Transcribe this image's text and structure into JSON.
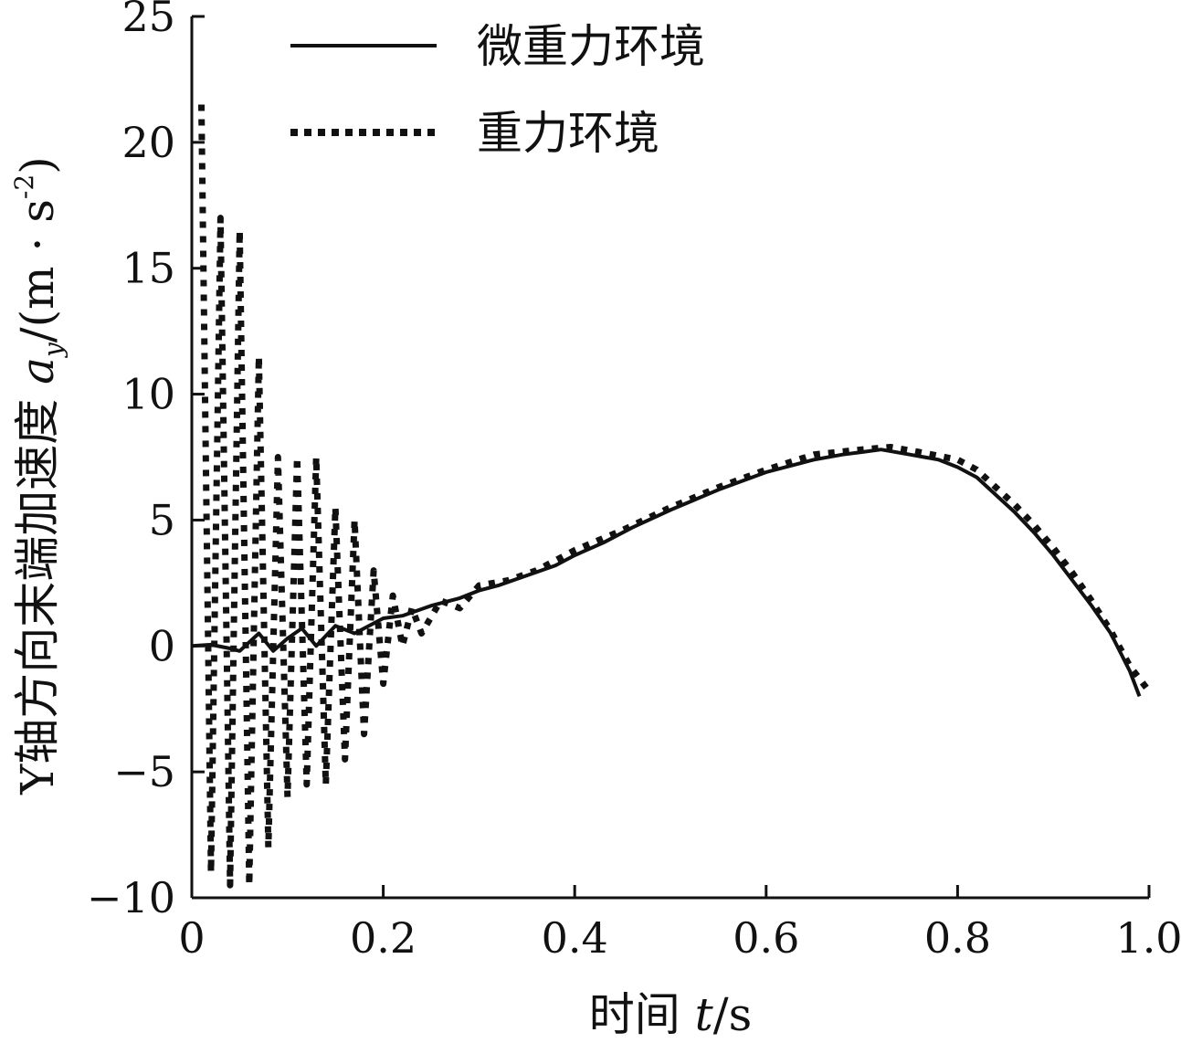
{
  "chart_data": {
    "type": "line",
    "xlabel_prefix": "时间 ",
    "xlabel_var": "t",
    "xlabel_unit": "/s",
    "ylabel_prefix": "Y轴方向末端加速度 ",
    "ylabel_var": "a",
    "ylabel_sub": "y",
    "ylabel_unit": "/(m · s",
    "ylabel_sup": "-2",
    "ylabel_close": ")",
    "xlim": [
      0,
      1.0
    ],
    "ylim": [
      -10,
      25
    ],
    "xticks": [
      "0",
      "0.2",
      "0.4",
      "0.6",
      "0.8",
      "1.0"
    ],
    "xtick_values": [
      0,
      0.2,
      0.4,
      0.6,
      0.8,
      1.0
    ],
    "yticks": [
      "25",
      "20",
      "15",
      "10",
      "5",
      "0",
      "−5",
      "−10"
    ],
    "ytick_values": [
      25,
      20,
      15,
      10,
      5,
      0,
      -5,
      -10
    ],
    "grid": false,
    "legend_position": "top-left",
    "series": [
      {
        "name": "微重力环境",
        "style": "solid",
        "x": [
          0,
          0.02,
          0.04,
          0.05,
          0.07,
          0.085,
          0.1,
          0.115,
          0.13,
          0.15,
          0.17,
          0.2,
          0.22,
          0.25,
          0.28,
          0.3,
          0.32,
          0.35,
          0.38,
          0.4,
          0.43,
          0.46,
          0.5,
          0.55,
          0.6,
          0.65,
          0.68,
          0.7,
          0.72,
          0.75,
          0.78,
          0.8,
          0.82,
          0.84,
          0.86,
          0.88,
          0.9,
          0.92,
          0.94,
          0.96,
          0.98,
          0.99
        ],
        "y": [
          0,
          0.05,
          -0.1,
          -0.2,
          0.5,
          -0.2,
          0.3,
          0.7,
          0.0,
          0.8,
          0.5,
          1.1,
          1.2,
          1.6,
          1.9,
          2.2,
          2.4,
          2.8,
          3.2,
          3.6,
          4.1,
          4.7,
          5.4,
          6.2,
          6.9,
          7.4,
          7.6,
          7.7,
          7.8,
          7.6,
          7.4,
          7.1,
          6.7,
          6.0,
          5.3,
          4.5,
          3.6,
          2.6,
          1.6,
          0.5,
          -1.0,
          -2.0
        ]
      },
      {
        "name": "重力环境",
        "style": "dotted",
        "x": [
          0.01,
          0.02,
          0.03,
          0.04,
          0.05,
          0.06,
          0.07,
          0.08,
          0.09,
          0.1,
          0.11,
          0.12,
          0.13,
          0.14,
          0.15,
          0.16,
          0.17,
          0.18,
          0.19,
          0.2,
          0.21,
          0.22,
          0.23,
          0.24,
          0.26,
          0.28,
          0.3,
          0.33,
          0.36,
          0.4,
          0.45,
          0.5,
          0.55,
          0.6,
          0.65,
          0.7,
          0.73,
          0.76,
          0.8,
          0.82,
          0.84,
          0.86,
          0.88,
          0.9,
          0.92,
          0.94,
          0.96,
          0.98,
          1.0
        ],
        "y": [
          21.5,
          -9,
          17,
          -9.5,
          16.5,
          -9.5,
          11.5,
          -8,
          7.5,
          -6,
          7.5,
          -5.5,
          7.5,
          -5.5,
          5.5,
          -4.5,
          5,
          -3.5,
          3,
          -1.5,
          2,
          0,
          1.5,
          0.5,
          1.8,
          1.5,
          2.4,
          2.6,
          3.0,
          3.8,
          4.6,
          5.5,
          6.3,
          7.0,
          7.6,
          7.8,
          7.9,
          7.7,
          7.4,
          7.0,
          6.3,
          5.6,
          4.8,
          3.9,
          2.9,
          1.8,
          0.6,
          -0.8,
          -1.8
        ]
      }
    ]
  }
}
